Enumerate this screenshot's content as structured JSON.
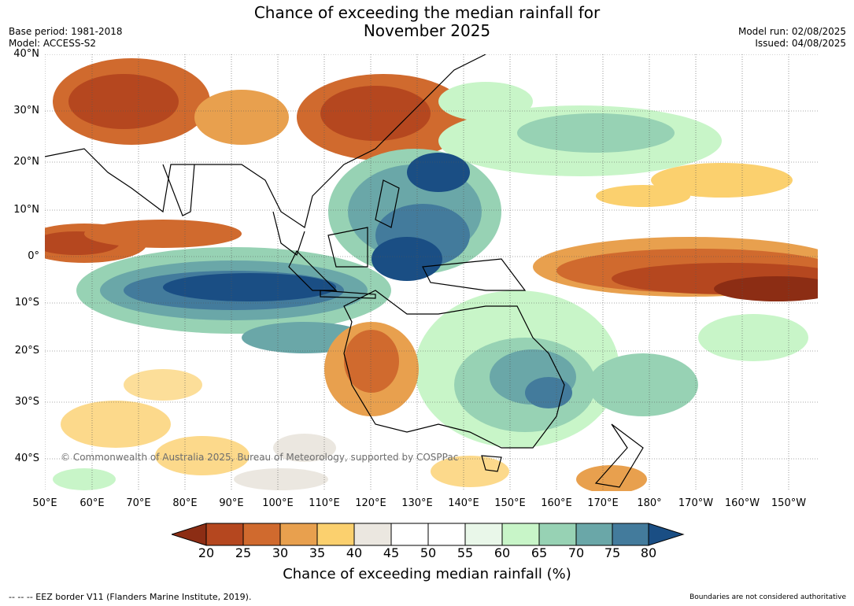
{
  "title_line1": "Chance of exceeding the median rainfall for",
  "title_line2": "November 2025",
  "meta_left": {
    "base_period": "Base period: 1981-2018",
    "model": "Model: ACCESS-S2"
  },
  "meta_right": {
    "model_run": "Model run: 02/08/2025",
    "issued": "Issued: 04/08/2025"
  },
  "lat_labels": [
    "40°N",
    "30°N",
    "20°N",
    "10°N",
    "0°",
    "10°S",
    "20°S",
    "30°S",
    "40°S"
  ],
  "lon_labels": [
    "50°E",
    "60°E",
    "70°E",
    "80°E",
    "90°E",
    "100°E",
    "110°E",
    "120°E",
    "130°E",
    "140°E",
    "150°E",
    "160°E",
    "170°E",
    "180°",
    "170°W",
    "160°W",
    "150°W"
  ],
  "colorbar": {
    "ticks": [
      "20",
      "25",
      "30",
      "35",
      "40",
      "45",
      "50",
      "55",
      "60",
      "65",
      "70",
      "75",
      "80"
    ],
    "colors": [
      "#8c2d14",
      "#b5471f",
      "#d06a2e",
      "#e8a04e",
      "#fbd06e",
      "#ebe7e0",
      "#ffffff",
      "#ffffff",
      "#e9f7e9",
      "#c8f5c8",
      "#97d2b4",
      "#6aa7a8",
      "#437b9c",
      "#1a4e84"
    ],
    "title": "Chance of exceeding median rainfall (%)"
  },
  "copyright": "© Commonwealth of Australia 2025, Bureau of Meteorology, supported by COSPPac",
  "footer_left": "--  --  -- EEZ border V11 (Flanders Marine Institute, 2019).",
  "footer_right": "Boundaries are not considered authoritative"
}
